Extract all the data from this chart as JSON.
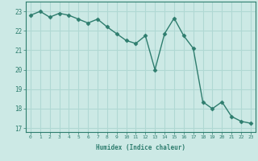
{
  "x": [
    0,
    1,
    2,
    3,
    4,
    5,
    6,
    7,
    8,
    9,
    10,
    11,
    12,
    13,
    14,
    15,
    16,
    17,
    18,
    19,
    20,
    21,
    22,
    23
  ],
  "y": [
    22.8,
    23.0,
    22.7,
    22.9,
    22.8,
    22.6,
    22.4,
    22.6,
    22.2,
    21.85,
    21.5,
    21.35,
    21.75,
    20.0,
    21.85,
    22.65,
    21.75,
    21.1,
    18.35,
    18.0,
    18.35,
    17.6,
    17.35,
    17.25
  ],
  "line_color": "#2e7d6e",
  "marker": "D",
  "markersize": 2.5,
  "linewidth": 1.0,
  "bg_color": "#cce9e5",
  "grid_color": "#b0d8d3",
  "tick_color": "#2e7d6e",
  "label_color": "#2e7d6e",
  "xlabel": "Humidex (Indice chaleur)",
  "ylim": [
    16.8,
    23.5
  ],
  "xlim": [
    -0.5,
    23.5
  ],
  "yticks": [
    17,
    18,
    19,
    20,
    21,
    22,
    23
  ],
  "xticks": [
    0,
    1,
    2,
    3,
    4,
    5,
    6,
    7,
    8,
    9,
    10,
    11,
    12,
    13,
    14,
    15,
    16,
    17,
    18,
    19,
    20,
    21,
    22,
    23
  ]
}
